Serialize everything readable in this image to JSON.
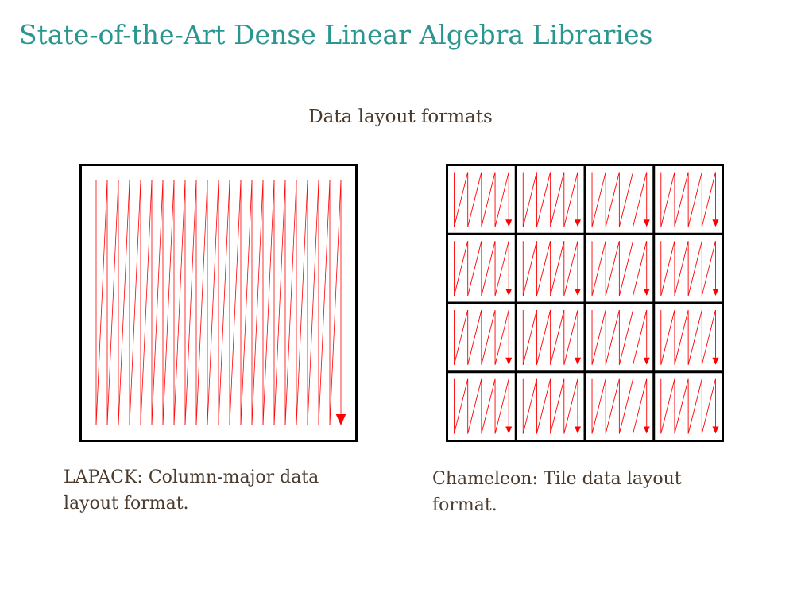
{
  "slide": {
    "title": "State-of-the-Art Dense Linear Algebra Libraries",
    "subtitle": "Data layout formats"
  },
  "lapack": {
    "caption_lines": [
      "LAPACK: Column-major data",
      "layout format."
    ],
    "columns": 23
  },
  "chameleon": {
    "caption_lines": [
      "Chameleon: Tile data layout",
      "format."
    ],
    "tile_rows": 4,
    "tile_cols": 4,
    "columns_per_tile": 5
  },
  "colors": {
    "title": "#2a9690",
    "text": "#4a3b2e",
    "trace": "#ff0000",
    "border": "#000000"
  }
}
